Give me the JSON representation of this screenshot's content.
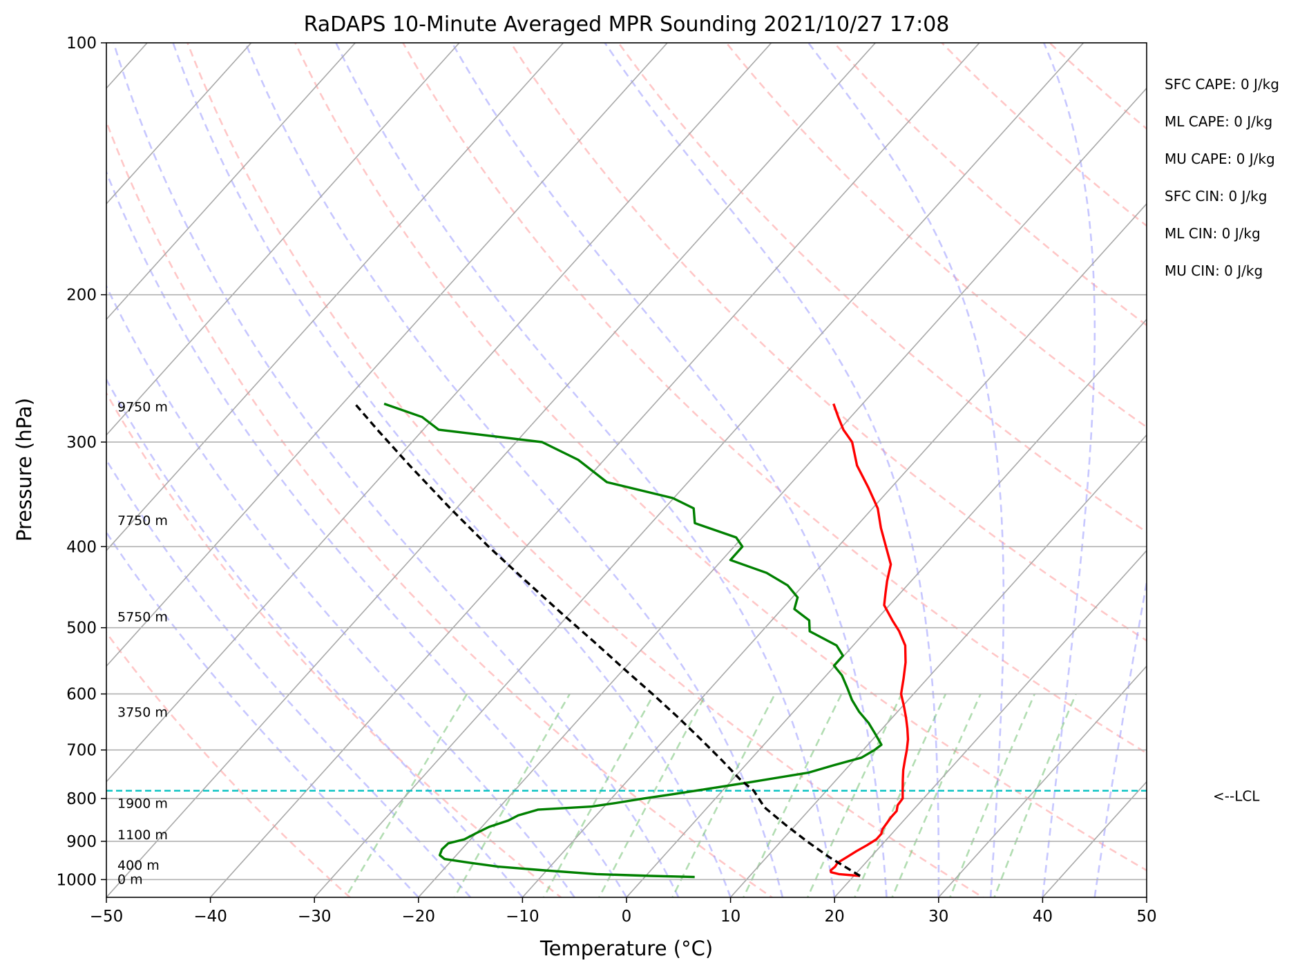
{
  "chart_data": {
    "type": "skew-t",
    "title": "RaDAPS 10-Minute Averaged MPR Sounding 2021/10/27 17:08",
    "xlabel": "Temperature (°C)",
    "ylabel": "Pressure (hPa)",
    "xlim": [
      -50,
      50
    ],
    "ylim": [
      1050,
      100
    ],
    "y_scale": "log",
    "grid": true,
    "x_ticks": [
      -50,
      -40,
      -30,
      -20,
      -10,
      0,
      10,
      20,
      30,
      40,
      50
    ],
    "x_tick_labels": [
      "−50",
      "−40",
      "−30",
      "−20",
      "−10",
      "0",
      "10",
      "20",
      "30",
      "40",
      "50"
    ],
    "y_ticks": [
      1000,
      900,
      800,
      700,
      600,
      500,
      400,
      300,
      200,
      100
    ],
    "y_tick_labels": [
      "1000",
      "900",
      "800",
      "700",
      "600",
      "500",
      "400",
      "300",
      "200",
      "100"
    ],
    "height_labels": [
      {
        "text": "9750 m",
        "p": 272
      },
      {
        "text": "7750 m",
        "p": 372
      },
      {
        "text": "5750 m",
        "p": 485
      },
      {
        "text": "3750 m",
        "p": 630
      },
      {
        "text": "1900 m",
        "p": 810
      },
      {
        "text": "1100 m",
        "p": 883
      },
      {
        "text": "400 m",
        "p": 960
      },
      {
        "text": "0 m",
        "p": 998
      }
    ],
    "indices": [
      "SFC CAPE: 0 J/kg",
      "ML CAPE: 0 J/kg",
      "MU CAPE: 0 J/kg",
      "SFC CIN: 0 J/kg",
      "ML CIN: 0 J/kg",
      "MU CIN: 0 J/kg"
    ],
    "lcl": {
      "label": "<--LCL",
      "p": 783
    },
    "series": [
      {
        "color": "#ff0000",
        "points": [
          [
            990,
            20.6
          ],
          [
            985,
            18.4
          ],
          [
            980,
            17.5
          ],
          [
            975,
            17.3
          ],
          [
            965,
            17.4
          ],
          [
            955,
            17.3
          ],
          [
            940,
            17.7
          ],
          [
            925,
            18.1
          ],
          [
            910,
            18.6
          ],
          [
            895,
            19
          ],
          [
            882,
            19
          ],
          [
            870,
            18.7
          ],
          [
            855,
            18.6
          ],
          [
            842,
            18.5
          ],
          [
            828,
            18.5
          ],
          [
            815,
            18.1
          ],
          [
            800,
            18
          ],
          [
            790,
            17.6
          ],
          [
            780,
            17.2
          ],
          [
            760,
            16.4
          ],
          [
            740,
            15.6
          ],
          [
            720,
            14.9
          ],
          [
            700,
            14.2
          ],
          [
            680,
            13.4
          ],
          [
            660,
            12.4
          ],
          [
            640,
            11.3
          ],
          [
            620,
            10.1
          ],
          [
            600,
            8.8
          ],
          [
            575,
            7.7
          ],
          [
            550,
            6.5
          ],
          [
            525,
            5
          ],
          [
            505,
            3.2
          ],
          [
            490,
            1.6
          ],
          [
            470,
            -0.5
          ],
          [
            455,
            -1.4
          ],
          [
            440,
            -2.3
          ],
          [
            420,
            -3.4
          ],
          [
            400,
            -5.4
          ],
          [
            380,
            -7.5
          ],
          [
            360,
            -9.5
          ],
          [
            340,
            -12.2
          ],
          [
            320,
            -15.2
          ],
          [
            300,
            -17.7
          ],
          [
            290,
            -19.6
          ],
          [
            280,
            -21.2
          ],
          [
            270,
            -22.8
          ]
        ]
      },
      {
        "color": "#008000",
        "points": [
          [
            993,
            4.8
          ],
          [
            990,
            0.5
          ],
          [
            985,
            -4.9
          ],
          [
            975,
            -10.2
          ],
          [
            965,
            -15
          ],
          [
            955,
            -18
          ],
          [
            945,
            -20.8
          ],
          [
            935,
            -21.6
          ],
          [
            920,
            -21.9
          ],
          [
            905,
            -21.8
          ],
          [
            895,
            -20.6
          ],
          [
            880,
            -20
          ],
          [
            865,
            -19.3
          ],
          [
            850,
            -18
          ],
          [
            838,
            -17.5
          ],
          [
            825,
            -16.1
          ],
          [
            818,
            -11.2
          ],
          [
            810,
            -9.2
          ],
          [
            800,
            -6.9
          ],
          [
            790,
            -4.3
          ],
          [
            780,
            -1.8
          ],
          [
            765,
            1.9
          ],
          [
            745,
            6.7
          ],
          [
            730,
            8.5
          ],
          [
            715,
            10.5
          ],
          [
            700,
            11.1
          ],
          [
            690,
            11.3
          ],
          [
            670,
            9.8
          ],
          [
            650,
            8.2
          ],
          [
            630,
            6.3
          ],
          [
            610,
            4.6
          ],
          [
            590,
            3.1
          ],
          [
            570,
            1.5
          ],
          [
            555,
            -0.1
          ],
          [
            540,
            -0.1
          ],
          [
            525,
            -1.6
          ],
          [
            505,
            -5.4
          ],
          [
            490,
            -6.4
          ],
          [
            475,
            -8.8
          ],
          [
            460,
            -9.5
          ],
          [
            445,
            -11.5
          ],
          [
            430,
            -14.6
          ],
          [
            415,
            -19.2
          ],
          [
            400,
            -19.2
          ],
          [
            390,
            -20.6
          ],
          [
            375,
            -25.8
          ],
          [
            360,
            -27.2
          ],
          [
            350,
            -30.1
          ],
          [
            335,
            -37.8
          ],
          [
            315,
            -42.5
          ],
          [
            300,
            -47.5
          ],
          [
            290,
            -58.5
          ],
          [
            280,
            -61.2
          ],
          [
            270,
            -66
          ]
        ]
      },
      {
        "color": "#000000",
        "dashed": true,
        "points": [
          [
            990,
            20.6
          ],
          [
            940,
            16
          ],
          [
            900,
            12.5
          ],
          [
            860,
            9
          ],
          [
            820,
            5.5
          ],
          [
            783,
            3
          ],
          [
            760,
            0.8
          ],
          [
            720,
            -2.7
          ],
          [
            680,
            -6.5
          ],
          [
            640,
            -10.6
          ],
          [
            600,
            -15.1
          ],
          [
            560,
            -20
          ],
          [
            520,
            -25.2
          ],
          [
            480,
            -30.9
          ],
          [
            440,
            -37
          ],
          [
            400,
            -43.6
          ],
          [
            360,
            -50.6
          ],
          [
            320,
            -58.2
          ],
          [
            290,
            -64.4
          ],
          [
            270,
            -68.8
          ]
        ]
      }
    ]
  }
}
